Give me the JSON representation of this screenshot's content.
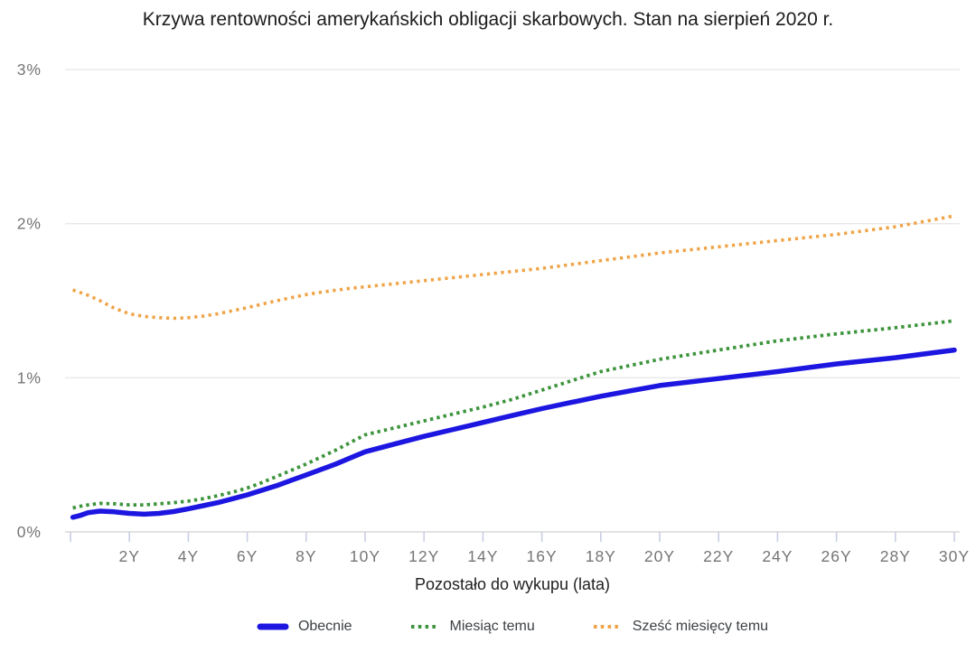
{
  "page": {
    "background": "#ffffff"
  },
  "chart_data": {
    "type": "line",
    "title": "Krzywa rentowności amerykańskich obligacji skarbowych. Stan na sierpień 2020 r.",
    "xlabel": "Pozostało do wykupu (lata)",
    "ylabel": "",
    "xlim": [
      0,
      30
    ],
    "ylim": [
      0,
      3
    ],
    "grid": true,
    "legend_position": "bottom",
    "y_ticks": [
      {
        "value": 0,
        "label": "0%"
      },
      {
        "value": 1,
        "label": "1%"
      },
      {
        "value": 2,
        "label": "2%"
      },
      {
        "value": 3,
        "label": "3%"
      }
    ],
    "x_ticks": [
      {
        "value": 0,
        "label": ""
      },
      {
        "value": 2,
        "label": "2Y"
      },
      {
        "value": 4,
        "label": "4Y"
      },
      {
        "value": 6,
        "label": "6Y"
      },
      {
        "value": 8,
        "label": "8Y"
      },
      {
        "value": 10,
        "label": "10Y"
      },
      {
        "value": 12,
        "label": "12Y"
      },
      {
        "value": 14,
        "label": "14Y"
      },
      {
        "value": 16,
        "label": "16Y"
      },
      {
        "value": 18,
        "label": "18Y"
      },
      {
        "value": 20,
        "label": "20Y"
      },
      {
        "value": 22,
        "label": "22Y"
      },
      {
        "value": 24,
        "label": "24Y"
      },
      {
        "value": 26,
        "label": "26Y"
      },
      {
        "value": 28,
        "label": "28Y"
      },
      {
        "value": 30,
        "label": "30Y"
      }
    ],
    "grid_color": "#e8e8e8",
    "baseline_color": "#d8d8d8",
    "tick_color": "#c9cfe3",
    "text_colors": {
      "title": "#1c1c1c",
      "axis_tick_labels": "#757575",
      "axis_title": "#212121",
      "legend": "#3c4043"
    },
    "series": [
      {
        "name": "Obecnie",
        "color": "#1c16e0",
        "style": "solid",
        "width": 5.5,
        "dash": "",
        "points": [
          [
            0.08,
            0.095
          ],
          [
            0.3,
            0.105
          ],
          [
            0.6,
            0.125
          ],
          [
            1,
            0.135
          ],
          [
            1.5,
            0.13
          ],
          [
            2,
            0.12
          ],
          [
            2.5,
            0.115
          ],
          [
            3,
            0.12
          ],
          [
            3.5,
            0.132
          ],
          [
            4,
            0.15
          ],
          [
            4.5,
            0.17
          ],
          [
            5,
            0.19
          ],
          [
            5.5,
            0.215
          ],
          [
            6,
            0.24
          ],
          [
            6.5,
            0.27
          ],
          [
            7,
            0.3
          ],
          [
            7.5,
            0.335
          ],
          [
            8,
            0.37
          ],
          [
            8.5,
            0.405
          ],
          [
            9,
            0.44
          ],
          [
            9.5,
            0.48
          ],
          [
            10,
            0.52
          ],
          [
            11,
            0.57
          ],
          [
            12,
            0.62
          ],
          [
            13,
            0.665
          ],
          [
            14,
            0.71
          ],
          [
            15,
            0.755
          ],
          [
            16,
            0.8
          ],
          [
            17,
            0.84
          ],
          [
            18,
            0.88
          ],
          [
            19,
            0.915
          ],
          [
            20,
            0.95
          ],
          [
            22,
            0.995
          ],
          [
            24,
            1.04
          ],
          [
            26,
            1.09
          ],
          [
            28,
            1.13
          ],
          [
            30,
            1.18
          ]
        ]
      },
      {
        "name": "Miesiąc temu",
        "color": "#3d943d",
        "style": "dotted",
        "width": 3.8,
        "dash": "3.4 4.1",
        "points": [
          [
            0.08,
            0.155
          ],
          [
            0.3,
            0.165
          ],
          [
            0.6,
            0.175
          ],
          [
            1,
            0.185
          ],
          [
            1.5,
            0.182
          ],
          [
            2,
            0.175
          ],
          [
            2.5,
            0.175
          ],
          [
            3,
            0.182
          ],
          [
            3.5,
            0.19
          ],
          [
            4,
            0.2
          ],
          [
            4.5,
            0.215
          ],
          [
            5,
            0.235
          ],
          [
            5.5,
            0.258
          ],
          [
            6,
            0.285
          ],
          [
            6.5,
            0.32
          ],
          [
            7,
            0.36
          ],
          [
            7.5,
            0.4
          ],
          [
            8,
            0.44
          ],
          [
            8.5,
            0.485
          ],
          [
            9,
            0.53
          ],
          [
            9.5,
            0.58
          ],
          [
            10,
            0.63
          ],
          [
            11,
            0.675
          ],
          [
            12,
            0.72
          ],
          [
            13,
            0.765
          ],
          [
            14,
            0.81
          ],
          [
            15,
            0.86
          ],
          [
            16,
            0.92
          ],
          [
            17,
            0.98
          ],
          [
            18,
            1.04
          ],
          [
            19,
            1.08
          ],
          [
            20,
            1.12
          ],
          [
            22,
            1.18
          ],
          [
            24,
            1.24
          ],
          [
            26,
            1.285
          ],
          [
            28,
            1.325
          ],
          [
            30,
            1.37
          ]
        ]
      },
      {
        "name": "Sześć miesięcy temu",
        "color": "#f0a345",
        "style": "dotted",
        "width": 3.6,
        "dash": "3.2 4.6",
        "points": [
          [
            0.08,
            1.57
          ],
          [
            0.3,
            1.555
          ],
          [
            0.6,
            1.535
          ],
          [
            1,
            1.5
          ],
          [
            1.5,
            1.45
          ],
          [
            2,
            1.415
          ],
          [
            2.5,
            1.398
          ],
          [
            3,
            1.39
          ],
          [
            3.5,
            1.386
          ],
          [
            4,
            1.39
          ],
          [
            4.5,
            1.4
          ],
          [
            5,
            1.415
          ],
          [
            5.5,
            1.435
          ],
          [
            6,
            1.455
          ],
          [
            6.5,
            1.478
          ],
          [
            7,
            1.5
          ],
          [
            7.5,
            1.52
          ],
          [
            8,
            1.54
          ],
          [
            8.5,
            1.555
          ],
          [
            9,
            1.568
          ],
          [
            9.5,
            1.58
          ],
          [
            10,
            1.59
          ],
          [
            11,
            1.61
          ],
          [
            12,
            1.63
          ],
          [
            13,
            1.65
          ],
          [
            14,
            1.67
          ],
          [
            15,
            1.69
          ],
          [
            16,
            1.71
          ],
          [
            17,
            1.735
          ],
          [
            18,
            1.76
          ],
          [
            19,
            1.785
          ],
          [
            20,
            1.81
          ],
          [
            22,
            1.85
          ],
          [
            24,
            1.89
          ],
          [
            26,
            1.93
          ],
          [
            28,
            1.98
          ],
          [
            30,
            2.05
          ]
        ]
      }
    ]
  }
}
